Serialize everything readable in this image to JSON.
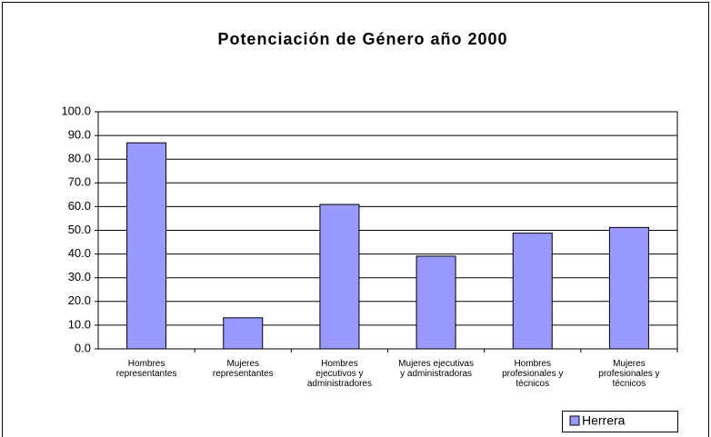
{
  "chart_data": {
    "type": "bar",
    "title": "Potenciación de Género año 2000",
    "categories": [
      "Hombres\nrepresentantes",
      "Mujeres\nrepresentantes",
      "Hombres\nejecutivos y\nadministradores",
      "Mujeres ejecutivas\ny administradoras",
      "Hombres\nprofesionales y\ntécnicos",
      "Mujeres\nprofesionales y\ntécnicos"
    ],
    "series": [
      {
        "name": "Herrera",
        "color": "#9999ff",
        "values": [
          86.9,
          13.1,
          60.9,
          39.1,
          48.8,
          51.2
        ]
      }
    ],
    "ylim": [
      0,
      100
    ],
    "yticks": [
      {
        "value": 0,
        "label": "0.0"
      },
      {
        "value": 10,
        "label": "10.0"
      },
      {
        "value": 20,
        "label": "20.0"
      },
      {
        "value": 30,
        "label": "30.0"
      },
      {
        "value": 40,
        "label": "40.0"
      },
      {
        "value": 50,
        "label": "50.0"
      },
      {
        "value": 60,
        "label": "60.0"
      },
      {
        "value": 70,
        "label": "70.0"
      },
      {
        "value": 80,
        "label": "80.0"
      },
      {
        "value": 90,
        "label": "90.0"
      },
      {
        "value": 100,
        "label": "100.0"
      }
    ],
    "grid": true,
    "legend": "bottom-right"
  }
}
